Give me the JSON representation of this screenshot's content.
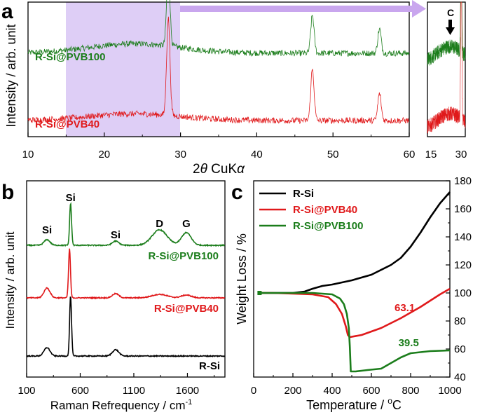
{
  "chart_data": [
    {
      "type": "line",
      "panel": "a",
      "xlabel_prefix": "2",
      "xlabel_theta": "θ",
      "xlabel_suffix": " CuK",
      "xlabel_alpha": "α",
      "ylabel": "Intensity / arb. unit",
      "xlim": [
        10,
        60
      ],
      "xticks": [
        "10",
        "20",
        "30",
        "40",
        "50",
        "60"
      ],
      "highlight_range": [
        15,
        30
      ],
      "series": [
        {
          "name": "R-Si@PVB100",
          "color": "#1b7d1b",
          "baseline": 0.62,
          "peaks": [
            {
              "x": 28.4,
              "h": 0.55
            },
            {
              "x": 47.3,
              "h": 0.28
            },
            {
              "x": 56.1,
              "h": 0.18
            }
          ],
          "hump": {
            "center": 24,
            "width": 6,
            "h": 0.07
          }
        },
        {
          "name": "R-Si@PVB40",
          "color": "#e0191b",
          "baseline": 0.12,
          "peaks": [
            {
              "x": 28.4,
              "h": 0.72
            },
            {
              "x": 47.3,
              "h": 0.38
            },
            {
              "x": 56.1,
              "h": 0.2
            }
          ],
          "hump": {
            "center": 24,
            "width": 6,
            "h": 0.05
          }
        }
      ],
      "inset": {
        "xlim": [
          15,
          30
        ],
        "xticks": [
          "15",
          "30"
        ],
        "annotation": "C"
      }
    },
    {
      "type": "line",
      "panel": "b",
      "xlabel": "Raman Refrequency / cm",
      "xlabel_sup": "-1",
      "ylabel": "Intensity / arb. unit",
      "xlim": [
        100,
        1950
      ],
      "xticks": [
        "100",
        "600",
        "1100",
        "1600"
      ],
      "xtick_values": [
        100,
        600,
        1100,
        1600
      ],
      "annotations": [
        {
          "text": "Si",
          "x": 290
        },
        {
          "text": "Si",
          "x": 510
        },
        {
          "text": "Si",
          "x": 930
        },
        {
          "text": "D",
          "x": 1340
        },
        {
          "text": "G",
          "x": 1590
        }
      ],
      "series": [
        {
          "name": "R-Si@PVB100",
          "color": "#1b7d1b"
        },
        {
          "name": "R-Si@PVB40",
          "color": "#e0191b"
        },
        {
          "name": "R-Si",
          "color": "#000000"
        }
      ]
    },
    {
      "type": "line",
      "panel": "c",
      "xlabel": "Temperature / ",
      "xlabel_unit": "C",
      "xlabel_deg": "o",
      "ylabel": "Weight Loss / %",
      "xlim": [
        0,
        1000
      ],
      "ylim": [
        40,
        180
      ],
      "xticks": [
        "0",
        "200",
        "400",
        "600",
        "800",
        "1000"
      ],
      "xtick_values": [
        0,
        200,
        400,
        600,
        800,
        1000
      ],
      "yticks": [
        "40",
        "60",
        "80",
        "100",
        "120",
        "140",
        "160",
        "180"
      ],
      "ytick_values": [
        40,
        60,
        80,
        100,
        120,
        140,
        160,
        180
      ],
      "legend_position": "top-left",
      "series": [
        {
          "name": "R-Si",
          "color": "#000000",
          "x": [
            30,
            100,
            200,
            260,
            300,
            350,
            400,
            500,
            600,
            700,
            750,
            800,
            850,
            900,
            950,
            1000
          ],
          "y": [
            100,
            100,
            100,
            101,
            103,
            105,
            106,
            109,
            113,
            120,
            125,
            133,
            143,
            154,
            164,
            172
          ]
        },
        {
          "name": "R-Si@PVB40",
          "color": "#e0191b",
          "x": [
            30,
            100,
            200,
            300,
            380,
            420,
            450,
            470,
            480,
            490,
            550,
            650,
            750,
            850,
            950,
            1000
          ],
          "y": [
            100,
            100,
            99.5,
            99,
            97,
            92,
            85,
            76,
            70,
            68.5,
            70,
            75,
            82,
            90,
            99,
            103
          ]
        },
        {
          "name": "R-Si@PVB100",
          "color": "#1b7d1b",
          "x": [
            30,
            100,
            200,
            300,
            400,
            440,
            460,
            475,
            485,
            490,
            495,
            520,
            580,
            650,
            700,
            750,
            800,
            900,
            1000
          ],
          "y": [
            100,
            100,
            100,
            100,
            99,
            96,
            92,
            85,
            75,
            62,
            44,
            44,
            45,
            46,
            50,
            54,
            57,
            58.5,
            59
          ]
        }
      ],
      "annotations": [
        {
          "text": "63.1",
          "x": 770,
          "y": 87,
          "color": "#e0191b"
        },
        {
          "text": "39.5",
          "x": 790,
          "y": 62,
          "color": "#1b7d1b"
        }
      ]
    }
  ]
}
